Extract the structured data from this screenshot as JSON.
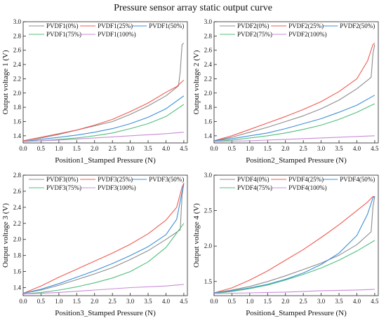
{
  "title": "Pressure sensor array static output curve",
  "colors": {
    "0%": "#8c8c8c",
    "25%": "#f05a50",
    "50%": "#3b8fd9",
    "75%": "#4fbf7a",
    "100%": "#c98bd9"
  },
  "chart_data": [
    {
      "type": "line",
      "xlabel": "Position1_Stamped Pressure (N)",
      "ylabel": "Output voltage 1 (V)",
      "xlim": [
        0,
        4.6
      ],
      "ylim": [
        1.3,
        3.0
      ],
      "xticks": [
        "0.0",
        "0.5",
        "1.0",
        "1.5",
        "2.0",
        "2.5",
        "3.0",
        "3.5",
        "4.0",
        "4.5"
      ],
      "yticks": [
        "1.4",
        "1.6",
        "1.8",
        "2.0",
        "2.2",
        "2.4",
        "2.6",
        "2.8",
        "3.0"
      ],
      "series": [
        {
          "name": "PVDF1(0%)",
          "color_key": "0%",
          "x": [
            0,
            0.5,
            1.0,
            1.5,
            2.0,
            2.5,
            3.0,
            3.5,
            4.0,
            4.35,
            4.4,
            4.45,
            4.5
          ],
          "y": [
            1.33,
            1.37,
            1.42,
            1.48,
            1.54,
            1.6,
            1.7,
            1.82,
            1.96,
            2.1,
            2.3,
            2.68,
            2.7
          ]
        },
        {
          "name": "PVDF1(25%)",
          "color_key": "25%",
          "x": [
            0,
            0.5,
            1.0,
            1.5,
            2.0,
            2.5,
            3.0,
            3.5,
            4.0,
            4.3,
            4.5
          ],
          "y": [
            1.33,
            1.38,
            1.43,
            1.48,
            1.55,
            1.63,
            1.74,
            1.86,
            2.01,
            2.09,
            2.18
          ]
        },
        {
          "name": "PVDF1(50%)",
          "color_key": "50%",
          "x": [
            0,
            0.5,
            1.0,
            1.5,
            2.0,
            2.5,
            3.0,
            3.5,
            4.0,
            4.5
          ],
          "y": [
            1.32,
            1.35,
            1.38,
            1.41,
            1.45,
            1.5,
            1.57,
            1.66,
            1.78,
            1.96
          ]
        },
        {
          "name": "PVDF1(75%)",
          "color_key": "75%",
          "x": [
            0,
            0.5,
            1.0,
            1.5,
            2.0,
            2.5,
            3.0,
            3.5,
            4.0,
            4.5
          ],
          "y": [
            1.32,
            1.33,
            1.35,
            1.37,
            1.4,
            1.44,
            1.5,
            1.57,
            1.67,
            1.84
          ]
        },
        {
          "name": "PVDF1(100%)",
          "color_key": "100%",
          "x": [
            0,
            1.0,
            2.0,
            3.0,
            4.0,
            4.5
          ],
          "y": [
            1.32,
            1.34,
            1.37,
            1.4,
            1.43,
            1.45
          ]
        }
      ]
    },
    {
      "type": "line",
      "xlabel": "Position2_Stamped Pressure (N)",
      "ylabel": "Output voltage 2 (V)",
      "xlim": [
        0,
        4.6
      ],
      "ylim": [
        1.3,
        3.0
      ],
      "xticks": [
        "0.0",
        "0.5",
        "1.0",
        "1.5",
        "2.0",
        "2.5",
        "3.0",
        "3.5",
        "4.0",
        "4.5"
      ],
      "yticks": [
        "1.4",
        "1.6",
        "1.8",
        "2.0",
        "2.2",
        "2.4",
        "2.6",
        "2.8",
        "3.0"
      ],
      "series": [
        {
          "name": "PVDF2(0%)",
          "color_key": "0%",
          "x": [
            0,
            0.5,
            1.0,
            1.5,
            2.0,
            2.5,
            3.0,
            3.5,
            4.0,
            4.4,
            4.45,
            4.5
          ],
          "y": [
            1.33,
            1.38,
            1.45,
            1.52,
            1.6,
            1.68,
            1.78,
            1.9,
            2.06,
            2.22,
            2.55,
            2.68
          ]
        },
        {
          "name": "PVDF2(25%)",
          "color_key": "25%",
          "x": [
            0,
            0.5,
            1.0,
            1.5,
            2.0,
            2.5,
            3.0,
            3.5,
            4.0,
            4.3,
            4.45,
            4.5
          ],
          "y": [
            1.33,
            1.4,
            1.49,
            1.58,
            1.67,
            1.77,
            1.88,
            2.02,
            2.2,
            2.45,
            2.68,
            2.7
          ]
        },
        {
          "name": "PVDF2(50%)",
          "color_key": "50%",
          "x": [
            0,
            0.5,
            1.0,
            1.5,
            2.0,
            2.5,
            3.0,
            3.5,
            4.0,
            4.5
          ],
          "y": [
            1.33,
            1.36,
            1.4,
            1.44,
            1.5,
            1.57,
            1.64,
            1.73,
            1.83,
            1.97
          ]
        },
        {
          "name": "PVDF2(75%)",
          "color_key": "75%",
          "x": [
            0,
            0.5,
            1.0,
            1.5,
            2.0,
            2.5,
            3.0,
            3.5,
            4.0,
            4.5
          ],
          "y": [
            1.32,
            1.34,
            1.37,
            1.4,
            1.44,
            1.49,
            1.55,
            1.63,
            1.73,
            1.85
          ]
        },
        {
          "name": "PVDF2(100%)",
          "color_key": "100%",
          "x": [
            0,
            1.0,
            2.0,
            3.0,
            4.0,
            4.5
          ],
          "y": [
            1.32,
            1.33,
            1.35,
            1.37,
            1.39,
            1.4
          ]
        }
      ]
    },
    {
      "type": "line",
      "xlabel": "Position3_Stamped Pressure (N)",
      "ylabel": "Output voltage 3 (V)",
      "xlim": [
        0,
        4.6
      ],
      "ylim": [
        1.3,
        2.8
      ],
      "xticks": [
        "0.0",
        "0.5",
        "1.0",
        "1.5",
        "2.0",
        "2.5",
        "3.0",
        "3.5",
        "4.0",
        "4.5"
      ],
      "yticks": [
        "1.4",
        "1.6",
        "1.8",
        "2.0",
        "2.2",
        "2.4",
        "2.6",
        "2.8"
      ],
      "series": [
        {
          "name": "PVDF3(0%)",
          "color_key": "0%",
          "x": [
            0,
            0.5,
            1.0,
            1.5,
            2.0,
            2.5,
            3.0,
            3.5,
            4.0,
            4.4,
            4.45,
            4.5
          ],
          "y": [
            1.33,
            1.37,
            1.43,
            1.5,
            1.57,
            1.65,
            1.75,
            1.86,
            2.0,
            2.12,
            2.55,
            2.7
          ]
        },
        {
          "name": "PVDF3(25%)",
          "color_key": "25%",
          "x": [
            0,
            0.5,
            1.0,
            1.5,
            2.0,
            2.5,
            3.0,
            3.5,
            4.0,
            4.3,
            4.45,
            4.5
          ],
          "y": [
            1.33,
            1.42,
            1.53,
            1.63,
            1.73,
            1.83,
            1.94,
            2.07,
            2.24,
            2.4,
            2.65,
            2.7
          ]
        },
        {
          "name": "PVDF3(50%)",
          "color_key": "50%",
          "x": [
            0,
            0.5,
            1.0,
            1.5,
            2.0,
            2.5,
            3.0,
            3.5,
            4.0,
            4.3,
            4.5
          ],
          "y": [
            1.33,
            1.38,
            1.45,
            1.53,
            1.61,
            1.7,
            1.8,
            1.91,
            2.06,
            2.25,
            2.7
          ]
        },
        {
          "name": "PVDF3(75%)",
          "color_key": "75%",
          "x": [
            0,
            0.5,
            1.0,
            1.5,
            2.0,
            2.5,
            3.0,
            3.5,
            4.0,
            4.5
          ],
          "y": [
            1.32,
            1.34,
            1.37,
            1.41,
            1.46,
            1.52,
            1.6,
            1.72,
            1.9,
            2.2
          ]
        },
        {
          "name": "PVDF3(100%)",
          "color_key": "100%",
          "x": [
            0,
            1.0,
            2.0,
            3.0,
            4.0,
            4.5
          ],
          "y": [
            1.32,
            1.34,
            1.37,
            1.4,
            1.42,
            1.44
          ]
        }
      ]
    },
    {
      "type": "line",
      "xlabel": "Position4_Stamped Pressure (N)",
      "ylabel": "Output voltage 4 (V)",
      "xlim": [
        0,
        4.6
      ],
      "ylim": [
        1.3,
        3.0
      ],
      "xticks": [
        "0.0",
        "0.5",
        "1.0",
        "1.5",
        "2.0",
        "2.5",
        "3.0",
        "3.5",
        "4.0",
        "4.5"
      ],
      "yticks": [
        "1.5",
        "2.0",
        "2.5",
        "3.0"
      ],
      "series": [
        {
          "name": "PVDF4(0%)",
          "color_key": "0%",
          "x": [
            0,
            0.5,
            1.0,
            1.5,
            2.0,
            2.5,
            3.0,
            3.5,
            4.0,
            4.4,
            4.45,
            4.5
          ],
          "y": [
            1.34,
            1.38,
            1.43,
            1.5,
            1.58,
            1.67,
            1.76,
            1.87,
            2.02,
            2.2,
            2.55,
            2.7
          ]
        },
        {
          "name": "PVDF4(25%)",
          "color_key": "25%",
          "x": [
            0,
            0.5,
            1.0,
            1.5,
            2.0,
            2.5,
            3.0,
            3.5,
            4.0,
            4.3,
            4.45,
            4.5
          ],
          "y": [
            1.34,
            1.41,
            1.52,
            1.65,
            1.8,
            1.95,
            2.12,
            2.3,
            2.5,
            2.62,
            2.7,
            2.7
          ]
        },
        {
          "name": "PVDF4(50%)",
          "color_key": "50%",
          "x": [
            0,
            0.5,
            1.0,
            1.5,
            2.0,
            2.5,
            3.0,
            3.5,
            4.0,
            4.3,
            4.45,
            4.5
          ],
          "y": [
            1.34,
            1.37,
            1.41,
            1.46,
            1.53,
            1.62,
            1.74,
            1.9,
            2.15,
            2.45,
            2.68,
            2.7
          ]
        },
        {
          "name": "PVDF4(75%)",
          "color_key": "75%",
          "x": [
            0,
            0.5,
            1.0,
            1.5,
            2.0,
            2.5,
            3.0,
            3.5,
            4.0,
            4.5
          ],
          "y": [
            1.33,
            1.36,
            1.4,
            1.45,
            1.52,
            1.6,
            1.69,
            1.8,
            1.93,
            2.08
          ]
        },
        {
          "name": "PVDF4(100%)",
          "color_key": "100%",
          "x": [
            0,
            1.0,
            2.0,
            3.0,
            4.0,
            4.5
          ],
          "y": [
            1.33,
            1.34,
            1.35,
            1.37,
            1.38,
            1.39
          ]
        }
      ]
    }
  ]
}
